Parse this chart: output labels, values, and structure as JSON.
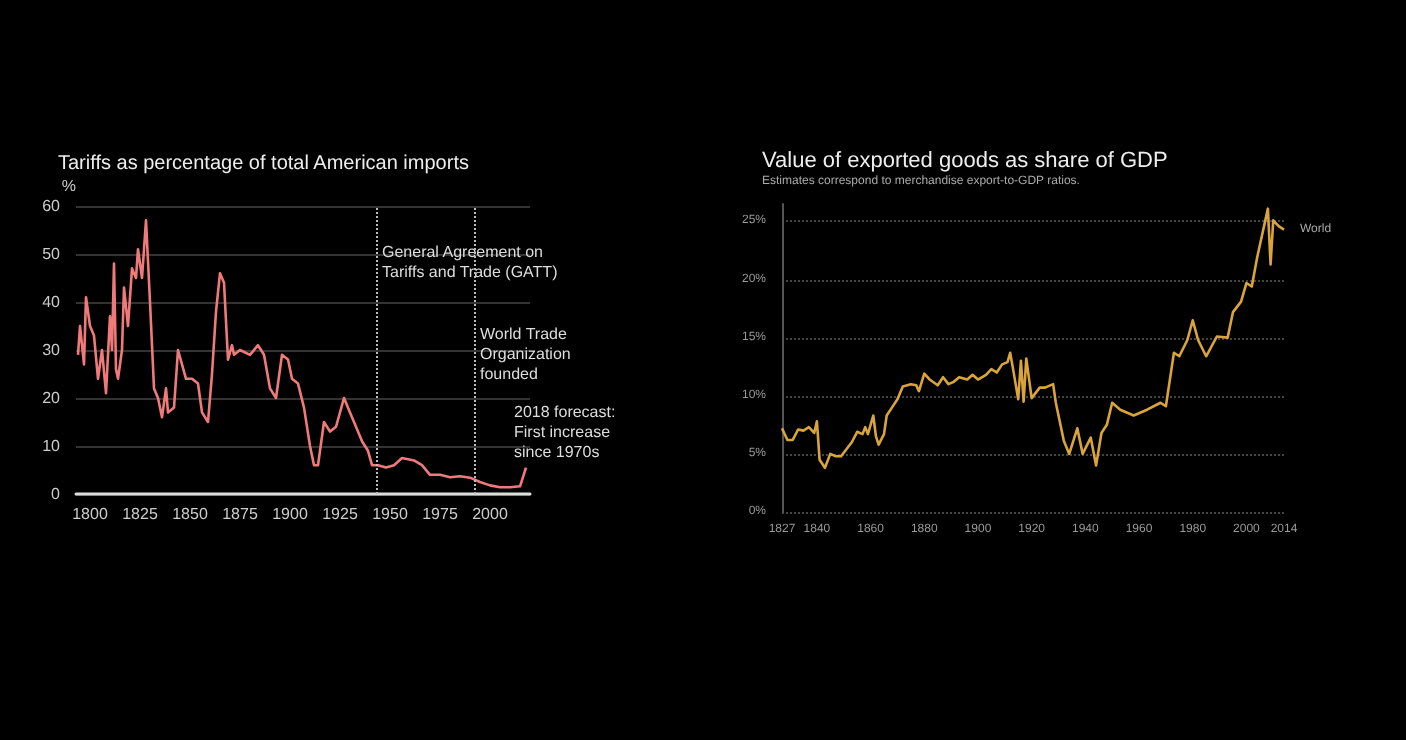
{
  "chart_data": [
    {
      "type": "line",
      "title": "Tariffs as percentage of total American imports",
      "ylabel": "%",
      "x": [
        1794,
        1795,
        1797,
        1798,
        1800,
        1802,
        1804,
        1806,
        1808,
        1810,
        1811,
        1812,
        1813,
        1814,
        1816,
        1817,
        1819,
        1821,
        1823,
        1824,
        1826,
        1828,
        1830,
        1832,
        1834,
        1836,
        1838,
        1839,
        1842,
        1844,
        1846,
        1848,
        1851,
        1854,
        1856,
        1859,
        1861,
        1863,
        1865,
        1867,
        1869,
        1871,
        1872,
        1875,
        1880,
        1884,
        1887,
        1890,
        1893,
        1896,
        1899,
        1901,
        1904,
        1907,
        1910,
        1912,
        1914,
        1917,
        1920,
        1923,
        1927,
        1930,
        1933,
        1936,
        1939,
        1941,
        1944,
        1948,
        1952,
        1956,
        1962,
        1966,
        1970,
        1975,
        1980,
        1985,
        1990,
        1995,
        2000,
        2005,
        2010,
        2015,
        2018
      ],
      "series": [
        {
          "color": "#f07a7a",
          "values": [
            29,
            35,
            27,
            41,
            35,
            33,
            24,
            30,
            21,
            37,
            30,
            48,
            26,
            24,
            30,
            43,
            35,
            47,
            45,
            51,
            45,
            57,
            40,
            22,
            20,
            16,
            22,
            17,
            18,
            30,
            27,
            24,
            24,
            23,
            17,
            15,
            25,
            38,
            46,
            44,
            28,
            31,
            29,
            30,
            29,
            31,
            29,
            22,
            20,
            29,
            28,
            24,
            23,
            18,
            10,
            6,
            6,
            15,
            13,
            14,
            20,
            17,
            14,
            11,
            9,
            6,
            6,
            5.5,
            6,
            7.5,
            7,
            6,
            4,
            4,
            3.5,
            3.7,
            3.4,
            2.5,
            1.8,
            1.4,
            1.4,
            1.6,
            5.5
          ]
        }
      ],
      "xlim": [
        1793,
        2020
      ],
      "ylim": [
        0,
        60
      ],
      "xticks": [
        1800,
        1825,
        1850,
        1875,
        1900,
        1925,
        1950,
        1975,
        2000
      ],
      "yticks": [
        0,
        10,
        20,
        30,
        40,
        50,
        60
      ],
      "grid": "y",
      "ref_lines": [
        {
          "axis": "x",
          "value": 1943,
          "label": "General Agreement on\nTariffs and Trade (GATT)",
          "line_style": "dotted"
        },
        {
          "axis": "x",
          "value": 1992,
          "label": "World Trade\nOrganization\nfounded",
          "line_style": "dotted"
        }
      ],
      "annotations": [
        {
          "text": "2018 forecast:\nFirst increase\nsince 1970s",
          "x": 2018,
          "y": 5.5
        }
      ]
    },
    {
      "type": "line",
      "title": "Value of exported goods as share of GDP",
      "subtitle": "Estimates correspond to merchandise export-to-GDP ratios.",
      "x": [
        1827,
        1829,
        1831,
        1833,
        1835,
        1837,
        1839,
        1840,
        1841,
        1843,
        1845,
        1847,
        1849,
        1851,
        1853,
        1855,
        1857,
        1858,
        1859,
        1861,
        1862,
        1863,
        1865,
        1866,
        1868,
        1870,
        1872,
        1875,
        1877,
        1878,
        1880,
        1882,
        1885,
        1887,
        1889,
        1891,
        1893,
        1896,
        1898,
        1900,
        1903,
        1905,
        1907,
        1909,
        1911,
        1912,
        1913,
        1915,
        1916,
        1917,
        1918,
        1920,
        1923,
        1925,
        1928,
        1929,
        1932,
        1934,
        1937,
        1939,
        1942,
        1944,
        1946,
        1948,
        1950,
        1953,
        1958,
        1963,
        1968,
        1970,
        1973,
        1975,
        1978,
        1980,
        1982,
        1985,
        1989,
        1993,
        1995,
        1998,
        2000,
        2002,
        2004,
        2006,
        2008,
        2009,
        2010,
        2012,
        2014
      ],
      "series": [
        {
          "name": "World",
          "color": "#d9a53a",
          "values": [
            7.2,
            6.2,
            6.2,
            7.1,
            7.0,
            7.3,
            6.8,
            7.8,
            4.5,
            3.8,
            5.0,
            4.8,
            4.8,
            5.4,
            6.0,
            6.9,
            6.7,
            7.3,
            6.7,
            8.3,
            6.5,
            5.8,
            6.7,
            8.3,
            9.0,
            9.7,
            10.8,
            11.0,
            10.9,
            10.4,
            11.9,
            11.4,
            10.9,
            11.6,
            11.0,
            11.2,
            11.6,
            11.4,
            11.8,
            11.4,
            11.8,
            12.3,
            12.0,
            12.7,
            12.9,
            13.7,
            12.4,
            9.7,
            13.0,
            9.5,
            13.2,
            9.8,
            10.7,
            10.7,
            11.0,
            9.4,
            6.1,
            5.0,
            7.2,
            5.0,
            6.4,
            4.0,
            6.8,
            7.5,
            9.4,
            8.8,
            8.3,
            8.8,
            9.4,
            9.1,
            13.7,
            13.4,
            14.8,
            16.5,
            14.8,
            13.4,
            15.1,
            15.0,
            17.2,
            18.1,
            19.7,
            19.4,
            21.9,
            24.0,
            26.1,
            21.3,
            25.1,
            24.6,
            24.3
          ]
        }
      ],
      "xlim": [
        1827,
        2014
      ],
      "ylim": [
        0,
        26.5
      ],
      "xticks": [
        1827,
        1840,
        1860,
        1880,
        1900,
        1920,
        1940,
        1960,
        1980,
        2000,
        2014
      ],
      "yticks": [
        {
          "value": 0,
          "label": "0%"
        },
        {
          "value": 5,
          "label": "5%"
        },
        {
          "value": 10,
          "label": "10%"
        },
        {
          "value": 15,
          "label": "15%"
        },
        {
          "value": 20,
          "label": "20%"
        },
        {
          "value": 25,
          "label": "25%"
        }
      ],
      "grid": "y"
    }
  ]
}
